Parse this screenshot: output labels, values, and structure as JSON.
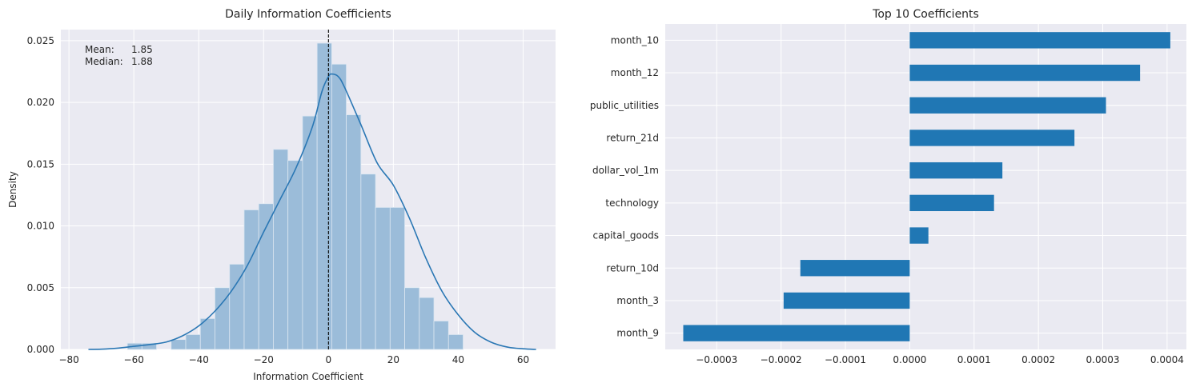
{
  "chart_data": [
    {
      "type": "histogram",
      "title": "Daily Information Coefficients",
      "xlabel": "Information Coefficient",
      "ylabel": "Density",
      "xlim": [
        -82.5,
        70
      ],
      "ylim": [
        0,
        0.0259
      ],
      "xticks": [
        -80,
        -60,
        -40,
        -20,
        0,
        20,
        40,
        60
      ],
      "xtick_labels": [
        "−80",
        "−60",
        "−40",
        "−20",
        "0",
        "20",
        "40",
        "60"
      ],
      "yticks": [
        0,
        0.005,
        0.01,
        0.015,
        0.02,
        0.025
      ],
      "ytick_labels": [
        "0.000",
        "0.005",
        "0.010",
        "0.015",
        "0.020",
        "0.025"
      ],
      "grid": true,
      "bars": {
        "x_start": [
          -62,
          -57.5,
          -48.5,
          -44,
          -39.5,
          -35,
          -30.5,
          -26,
          -21.5,
          -17,
          -12.5,
          -8,
          -3.5,
          1,
          5.5,
          10,
          14.5,
          19,
          23.5,
          28,
          32.5,
          37,
          41.5,
          46
        ],
        "x_end": [
          -57.5,
          -53,
          -44,
          -39.5,
          -35,
          -30.5,
          -26,
          -21.5,
          -17,
          -12.5,
          -8,
          -3.5,
          1,
          5.5,
          10,
          14.5,
          19,
          23.5,
          28,
          32.5,
          37,
          41.5,
          46,
          50.5
        ],
        "heights": [
          0.0005,
          0.0005,
          0.0008,
          0.0012,
          0.0025,
          0.005,
          0.0069,
          0.0113,
          0.0118,
          0.0162,
          0.0153,
          0.0189,
          0.0248,
          0.0231,
          0.019,
          0.0142,
          0.0115,
          0.0115,
          0.005,
          0.0042,
          0.0023,
          0.0012,
          0,
          0
        ]
      },
      "kde": {
        "x": [
          -74,
          -70,
          -65,
          -60,
          -55,
          -50,
          -45,
          -40,
          -35,
          -30,
          -25,
          -20,
          -15,
          -10,
          -5,
          -2,
          0,
          1,
          3,
          5,
          10,
          15,
          20,
          25,
          30,
          35,
          40,
          45,
          50,
          55,
          60,
          64
        ],
        "y": [
          0.0,
          2e-05,
          0.0001,
          0.00025,
          0.0004,
          0.0006,
          0.0011,
          0.0019,
          0.0031,
          0.0047,
          0.0068,
          0.0095,
          0.0121,
          0.0147,
          0.018,
          0.0209,
          0.0221,
          0.0223,
          0.0221,
          0.0212,
          0.0182,
          0.0151,
          0.0133,
          0.0106,
          0.0074,
          0.0047,
          0.0028,
          0.0014,
          0.0006,
          0.0002,
          5e-05,
          0.0
        ]
      },
      "vline_x": 0,
      "annotation": {
        "mean_label": "Mean:",
        "mean_value": "1.85",
        "median_label": "Median:",
        "median_value": "1.88"
      },
      "colors": {
        "bars": "#9bbcd9",
        "kde": "#2a77b4",
        "vline": "#000000"
      }
    },
    {
      "type": "bar",
      "orientation": "horizontal",
      "title": "Top 10 Coefficients",
      "categories": [
        "month_10",
        "month_12",
        "public_utilities",
        "return_21d",
        "dollar_vol_1m",
        "technology",
        "capital_goods",
        "return_10d",
        "month_3",
        "month_9"
      ],
      "values": [
        0.000405,
        0.000358,
        0.000305,
        0.000256,
        0.000144,
        0.000131,
        2.9e-05,
        -0.00017,
        -0.000196,
        -0.000352
      ],
      "xlim": [
        -0.00038,
        0.00043
      ],
      "xticks": [
        -0.0003,
        -0.0002,
        -0.0001,
        0,
        0.0001,
        0.0002,
        0.0003,
        0.0004
      ],
      "xtick_labels": [
        "−0.0003",
        "−0.0002",
        "−0.0001",
        "0.0000",
        "0.0001",
        "0.0002",
        "0.0003",
        "0.0004"
      ],
      "grid": true,
      "colors": {
        "bars": "#2077b4"
      }
    }
  ]
}
